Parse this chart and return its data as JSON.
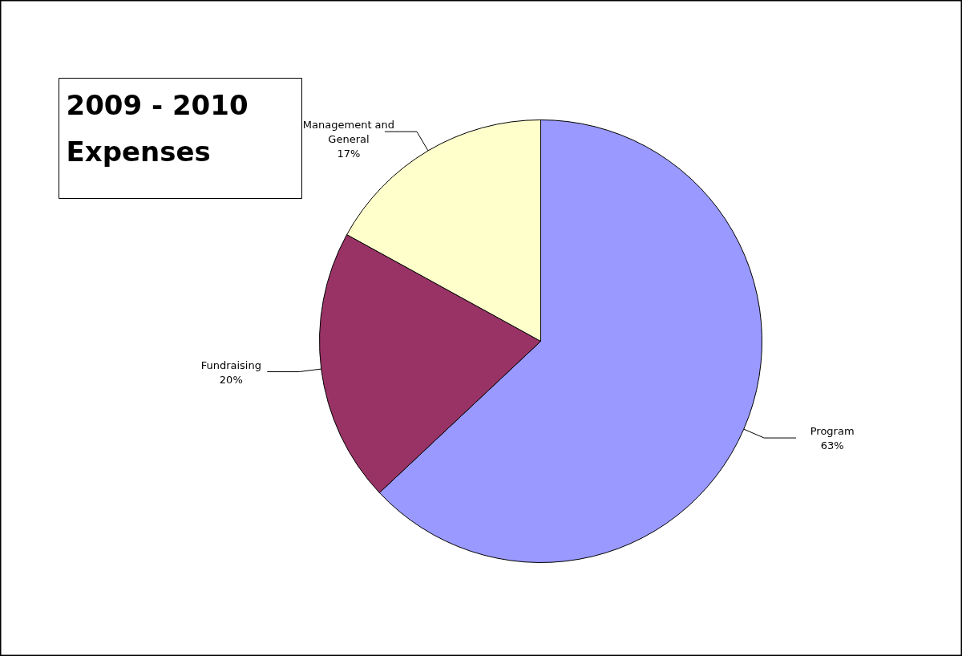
{
  "chart_data": {
    "type": "pie",
    "title": "2009 - 2010 Expenses",
    "categories": [
      "Program",
      "Fundraising",
      "Management and General"
    ],
    "values": [
      63,
      20,
      17
    ],
    "colors": [
      "#9999ff",
      "#993366",
      "#ffffcc"
    ],
    "value_labels": [
      "63%",
      "20%",
      "17%"
    ]
  }
}
